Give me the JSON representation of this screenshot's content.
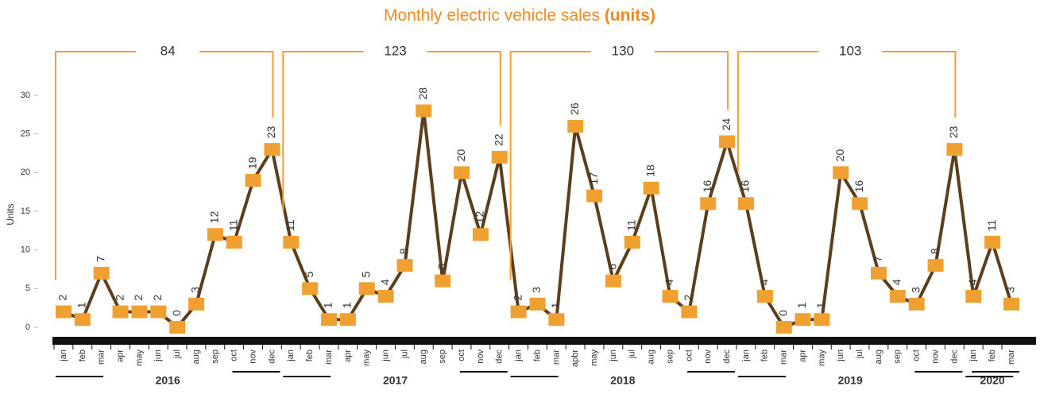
{
  "chart_data": {
    "type": "line",
    "title": "Monthly electric vehicle sales",
    "title_unit": "(units)",
    "y_label": "Units",
    "categories": [
      "jan",
      "feb",
      "mar",
      "apr",
      "may",
      "jun",
      "jul",
      "aug",
      "sep",
      "oct",
      "nov",
      "dec",
      "jan",
      "feb",
      "mar",
      "apr",
      "may",
      "jun",
      "jul",
      "aug",
      "sep",
      "oct",
      "nov",
      "dec",
      "jan",
      "feb",
      "mar",
      "apbr",
      "may",
      "jun",
      "jul",
      "aug",
      "sep",
      "oct",
      "nov",
      "dec",
      "jan",
      "feb",
      "mar",
      "apr",
      "may",
      "jun",
      "jul",
      "aug",
      "sep",
      "oct",
      "nov",
      "dec",
      "jan",
      "feb",
      "mar"
    ],
    "series": [
      {
        "name": "Units",
        "color": "#5c3d1c",
        "marker_color": "#f0a030",
        "values": [
          2,
          1,
          7,
          2,
          2,
          2,
          0,
          3,
          12,
          11,
          19,
          23,
          11,
          5,
          1,
          1,
          5,
          4,
          8,
          28,
          6,
          20,
          12,
          22,
          2,
          3,
          1,
          26,
          17,
          6,
          11,
          18,
          4,
          2,
          16,
          24,
          16,
          4,
          0,
          1,
          1,
          20,
          16,
          7,
          4,
          3,
          8,
          23,
          4,
          11,
          3
        ]
      }
    ],
    "groups": [
      {
        "label": "2016",
        "total": 84,
        "start": 0,
        "end": 11
      },
      {
        "label": "2017",
        "total": 123,
        "start": 12,
        "end": 23
      },
      {
        "label": "2018",
        "total": 130,
        "start": 24,
        "end": 35
      },
      {
        "label": "2019",
        "total": 103,
        "start": 36,
        "end": 47
      },
      {
        "label": "2020",
        "start": 48,
        "end": 50
      }
    ],
    "ylim": [
      0,
      30
    ],
    "yticks": [
      0,
      5,
      10,
      15,
      20,
      25,
      30
    ],
    "grid": false,
    "bracket_color": "#f0a030"
  }
}
